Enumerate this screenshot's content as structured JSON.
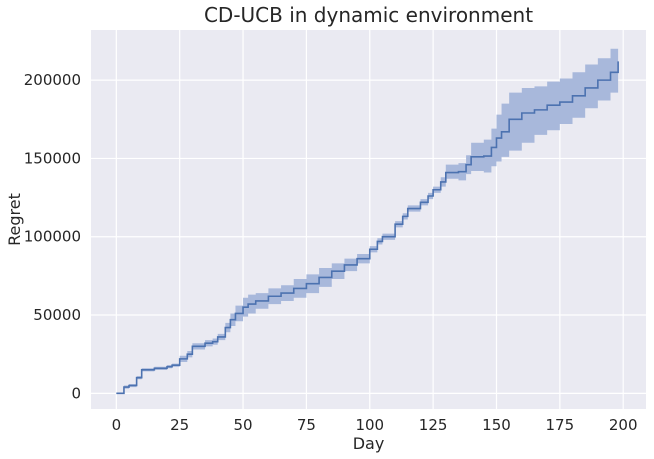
{
  "chart_data": {
    "type": "line",
    "title": "CD-UCB in dynamic environment",
    "xlabel": "Day",
    "ylabel": "Regret",
    "xlim": [
      -10,
      209
    ],
    "ylim": [
      -10000,
      232000
    ],
    "xticks": [
      0,
      25,
      50,
      75,
      100,
      125,
      150,
      175,
      200
    ],
    "yticks": [
      0,
      50000,
      100000,
      150000,
      200000
    ],
    "grid": true,
    "legend": "none",
    "colors": {
      "background": "#eaeaf2",
      "grid": "#ffffff",
      "line": "#4c72b0",
      "band": "#a8b8db"
    },
    "series": [
      {
        "x": [
          0,
          2,
          3,
          5,
          8,
          10,
          15,
          20,
          22,
          25,
          28,
          30,
          35,
          38,
          40,
          43,
          45,
          47,
          50,
          52,
          55,
          60,
          65,
          70,
          75,
          80,
          85,
          90,
          95,
          100,
          103,
          105,
          110,
          113,
          115,
          120,
          123,
          125,
          128,
          130,
          135,
          138,
          140,
          145,
          148,
          150,
          152,
          155,
          160,
          165,
          170,
          175,
          180,
          185,
          190,
          195,
          198
        ],
        "y": [
          0,
          0,
          4000,
          5000,
          10000,
          15000,
          16000,
          17000,
          18000,
          22000,
          25000,
          30000,
          32000,
          33000,
          36000,
          42000,
          47000,
          51000,
          55000,
          57000,
          59000,
          62000,
          64000,
          67000,
          70000,
          74000,
          78000,
          82000,
          86000,
          92000,
          97000,
          100000,
          108000,
          113000,
          118000,
          122000,
          126000,
          130000,
          135000,
          141000,
          141500,
          146000,
          151000,
          151500,
          157000,
          163000,
          167000,
          175000,
          179000,
          181000,
          184000,
          186000,
          190000,
          195000,
          200000,
          205000,
          212000
        ],
        "lower": [
          0,
          0,
          3000,
          4000,
          9000,
          14000,
          15000,
          16000,
          17000,
          20000,
          23000,
          28000,
          30000,
          31000,
          34000,
          39000,
          43000,
          46000,
          49000,
          51000,
          54000,
          57000,
          59000,
          61000,
          64000,
          68000,
          73000,
          78000,
          83000,
          90000,
          95000,
          98000,
          106000,
          111000,
          116000,
          120000,
          124000,
          128000,
          132000,
          137000,
          136000,
          140000,
          142000,
          141000,
          145000,
          148000,
          151000,
          155000,
          160000,
          165000,
          168000,
          172000,
          176000,
          182000,
          187000,
          192000,
          197000
        ],
        "upper": [
          0,
          0,
          5000,
          6000,
          11000,
          16000,
          17000,
          18000,
          19000,
          24000,
          27000,
          32000,
          34000,
          35000,
          38000,
          45000,
          51000,
          56000,
          61000,
          63000,
          64000,
          67000,
          69000,
          73000,
          76000,
          80000,
          83000,
          86000,
          89000,
          94000,
          99000,
          102000,
          110000,
          115000,
          120000,
          124000,
          128000,
          132000,
          138000,
          146000,
          147000,
          152000,
          160000,
          162000,
          169000,
          178000,
          185000,
          192000,
          195000,
          196000,
          199000,
          201000,
          205000,
          210000,
          214000,
          220000,
          226000
        ]
      }
    ]
  }
}
